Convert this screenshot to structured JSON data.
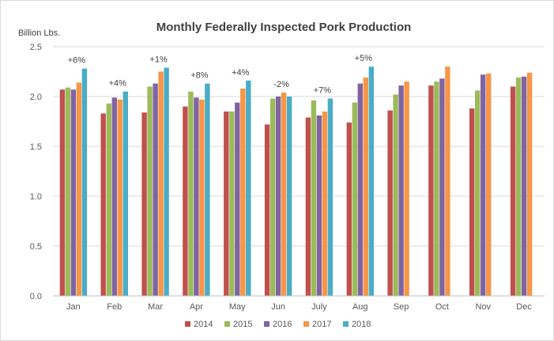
{
  "chart_data": {
    "type": "bar",
    "title": "Monthly Federally Inspected Pork Production",
    "ylabel": "Billion Lbs.",
    "xlabel": "",
    "ylim": [
      0,
      2.5
    ],
    "yticks": [
      "0.0",
      "0.5",
      "1.0",
      "1.5",
      "2.0",
      "2.5"
    ],
    "grid": true,
    "legend_position": "bottom",
    "categories": [
      "Jan",
      "Feb",
      "Mar",
      "Apr",
      "May",
      "Jun",
      "July",
      "Aug",
      "Sep",
      "Oct",
      "Nov",
      "Dec"
    ],
    "series": [
      {
        "name": "2014",
        "color": "#c0504d",
        "values": [
          2.07,
          1.83,
          1.84,
          1.9,
          1.85,
          1.72,
          1.79,
          1.74,
          1.86,
          2.11,
          1.88,
          2.1
        ]
      },
      {
        "name": "2015",
        "color": "#9bbb59",
        "values": [
          2.09,
          1.93,
          2.1,
          2.05,
          1.85,
          1.98,
          1.96,
          1.94,
          2.02,
          2.15,
          2.06,
          2.19
        ]
      },
      {
        "name": "2016",
        "color": "#8064a2",
        "values": [
          2.07,
          1.99,
          2.13,
          1.99,
          1.94,
          2.0,
          1.81,
          2.13,
          2.11,
          2.18,
          2.22,
          2.2
        ]
      },
      {
        "name": "2017",
        "color": "#f79646",
        "values": [
          2.14,
          1.97,
          2.25,
          1.97,
          2.08,
          2.04,
          1.85,
          2.19,
          2.15,
          2.3,
          2.23,
          2.24
        ]
      },
      {
        "name": "2018",
        "color": "#4bacc6",
        "values": [
          2.28,
          2.05,
          2.29,
          2.13,
          2.16,
          2.0,
          1.98,
          2.3,
          null,
          null,
          null,
          null
        ]
      }
    ],
    "annotations": [
      {
        "category": "Jan",
        "text": "+6%"
      },
      {
        "category": "Feb",
        "text": "+4%"
      },
      {
        "category": "Mar",
        "text": "+1%"
      },
      {
        "category": "Apr",
        "text": "+8%"
      },
      {
        "category": "May",
        "text": "+4%"
      },
      {
        "category": "Jun",
        "text": "-2%"
      },
      {
        "category": "July",
        "text": "+7%"
      },
      {
        "category": "Aug",
        "text": "+5%"
      }
    ]
  }
}
